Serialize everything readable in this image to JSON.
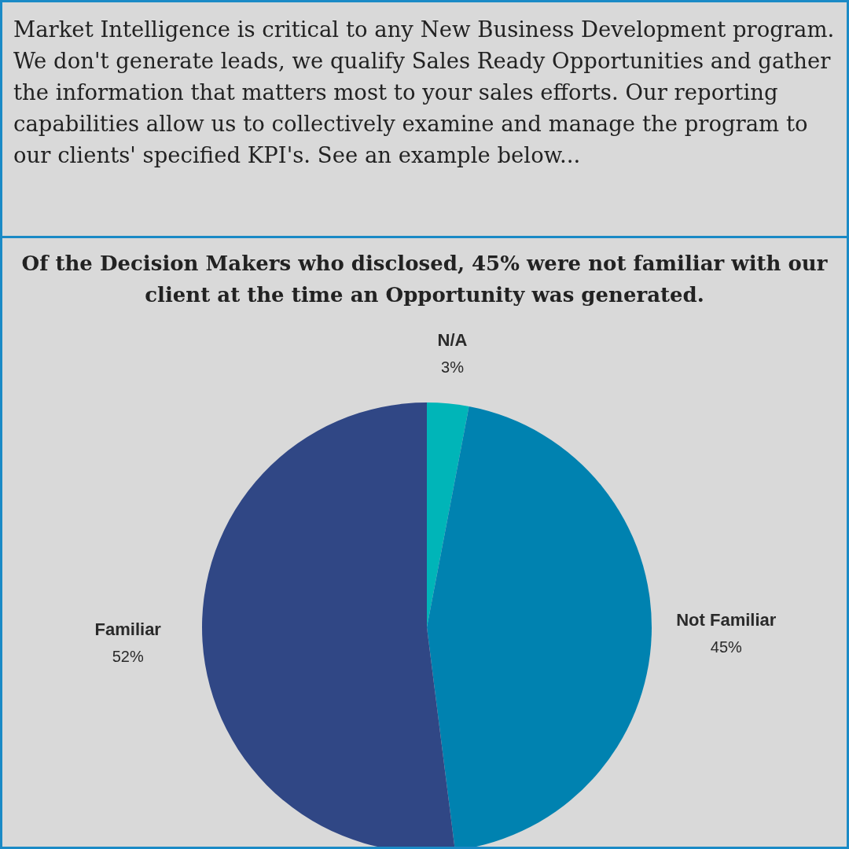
{
  "chart_data": {
    "type": "pie",
    "title": "Of the Decision Makers who disclosed, 45% were not familiar with our client at the time an Opportunity was generated.",
    "annotations": [
      "Market Intelligence is critical to any New Business Development program. We don't generate leads, we qualify Sales Ready Opportunities and gather the information that matters most to your sales efforts. Our reporting capabilities allow us to collectively examine and manage the program to our clients' specified KPI's. See an example below..."
    ],
    "categories": [
      "N/A",
      "Not Familiar",
      "Familiar"
    ],
    "values": [
      3,
      45,
      52
    ],
    "colors": [
      "#00b5b8",
      "#0082b0",
      "#304785"
    ],
    "value_labels": [
      "3%",
      "45%",
      "52%"
    ],
    "legend": false
  }
}
